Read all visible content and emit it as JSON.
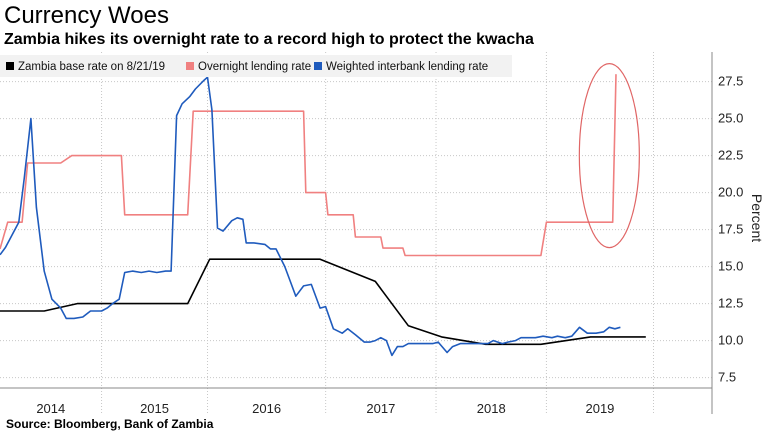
{
  "header": {
    "title": "Currency Woes",
    "subtitle": "Zambia hikes its overnight rate to a record high to protect the kwacha"
  },
  "footer": {
    "source": "Source: Bloomberg, Bank of Zambia"
  },
  "colors": {
    "base": "#000000",
    "overnight": "#f08080",
    "interbank": "#1f5bbd",
    "grid": "#c8c8c8",
    "annotation": "#e06666"
  },
  "chart_data": {
    "type": "line",
    "xlabel": "",
    "ylabel": "Percent",
    "x_tick_labels": [
      "2014",
      "2015",
      "2016",
      "2017",
      "2018",
      "2019"
    ],
    "y_ticks": [
      7.5,
      10.0,
      12.5,
      15.0,
      17.5,
      20.0,
      22.5,
      25.0,
      27.5
    ],
    "y_tick_labels": [
      "7.5",
      "10.0",
      "12.5",
      "15.0",
      "17.5",
      "20.0",
      "22.5",
      "25.0",
      "27.5"
    ],
    "xlim": [
      2013.5,
      2019.95
    ],
    "ylim": [
      6.8,
      29.5
    ],
    "grid": true,
    "legend_position": "top-left",
    "annotation": "circled recent spike in overnight lending rate",
    "series": [
      {
        "name": "Zambia base rate on 8/21/19",
        "color": "#000000",
        "x": [
          2013.5,
          2013.9,
          2014.2,
          2014.9,
          2014.95,
          2015.2,
          2015.4,
          2016.2,
          2016.4,
          2016.9,
          2017.2,
          2017.5,
          2017.9,
          2018.4,
          2018.85,
          2019.1,
          2019.35
        ],
        "y": [
          12.0,
          12.0,
          12.5,
          12.5,
          12.5,
          12.5,
          15.5,
          15.5,
          15.5,
          14.0,
          11.0,
          10.25,
          9.75,
          9.75,
          10.25,
          10.25,
          10.25
        ]
      },
      {
        "name": "Overnight lending rate",
        "color": "#f08080",
        "x": [
          2013.5,
          2013.57,
          2013.62,
          2013.7,
          2013.75,
          2014.05,
          2014.15,
          2014.6,
          2014.63,
          2015.2,
          2015.25,
          2016.25,
          2016.27,
          2016.45,
          2016.47,
          2016.7,
          2016.72,
          2016.95,
          2016.97,
          2017.15,
          2017.17,
          2017.45,
          2017.47,
          2018.4,
          2018.45,
          2018.85,
          2019.05,
          2019.08
        ],
        "y": [
          16.2,
          18.0,
          18.0,
          18.0,
          22.0,
          22.0,
          22.5,
          22.5,
          18.5,
          18.5,
          25.5,
          25.5,
          20.0,
          20.0,
          18.5,
          18.5,
          17.0,
          17.0,
          16.25,
          16.25,
          15.75,
          15.75,
          15.75,
          15.75,
          18.0,
          18.0,
          18.0,
          28.0
        ]
      },
      {
        "name": "Weighted interbank lending rate",
        "color": "#1f5bbd",
        "x": [
          2013.5,
          2013.55,
          2013.6,
          2013.67,
          2013.72,
          2013.78,
          2013.83,
          2013.9,
          2013.97,
          2014.05,
          2014.1,
          2014.17,
          2014.25,
          2014.32,
          2014.42,
          2014.47,
          2014.52,
          2014.58,
          2014.63,
          2014.7,
          2014.78,
          2014.85,
          2014.92,
          2015.0,
          2015.05,
          2015.1,
          2015.15,
          2015.22,
          2015.27,
          2015.35,
          2015.38,
          2015.42,
          2015.47,
          2015.52,
          2015.6,
          2015.65,
          2015.7,
          2015.73,
          2015.8,
          2015.9,
          2015.95,
          2016.0,
          2016.08,
          2016.13,
          2016.18,
          2016.25,
          2016.32,
          2016.4,
          2016.45,
          2016.52,
          2016.6,
          2016.65,
          2016.72,
          2016.8,
          2016.85,
          2016.9,
          2016.95,
          2017.0,
          2017.05,
          2017.1,
          2017.15,
          2017.2,
          2017.25,
          2017.3,
          2017.35,
          2017.42,
          2017.47,
          2017.55,
          2017.6,
          2017.67,
          2017.72,
          2017.8,
          2017.85,
          2017.92,
          2017.97,
          2018.05,
          2018.1,
          2018.17,
          2018.22,
          2018.3,
          2018.35,
          2018.42,
          2018.5,
          2018.55,
          2018.62,
          2018.68,
          2018.75,
          2018.82,
          2018.9,
          2018.97,
          2019.02,
          2019.07,
          2019.12
        ],
        "y": [
          15.8,
          16.3,
          17.0,
          18.0,
          21.0,
          25.0,
          19.0,
          14.7,
          12.8,
          12.2,
          11.5,
          11.5,
          11.6,
          12.0,
          12.0,
          12.2,
          12.5,
          12.8,
          14.6,
          14.7,
          14.6,
          14.7,
          14.6,
          14.7,
          14.7,
          25.2,
          26.0,
          26.5,
          27.0,
          27.6,
          27.8,
          25.6,
          17.6,
          17.4,
          18.1,
          18.3,
          18.2,
          16.6,
          16.6,
          16.5,
          16.2,
          16.2,
          15.0,
          14.0,
          13.0,
          13.7,
          13.8,
          12.2,
          12.3,
          10.8,
          10.5,
          10.8,
          10.4,
          9.9,
          9.9,
          10.0,
          10.2,
          10.0,
          9.0,
          9.6,
          9.6,
          9.8,
          9.8,
          9.8,
          9.8,
          9.8,
          9.9,
          9.2,
          9.6,
          9.8,
          9.8,
          9.8,
          9.8,
          9.8,
          10.0,
          9.8,
          9.9,
          10.0,
          10.2,
          10.2,
          10.2,
          10.3,
          10.2,
          10.3,
          10.2,
          10.3,
          10.9,
          10.5,
          10.5,
          10.6,
          10.9,
          10.8,
          10.9
        ]
      }
    ]
  }
}
